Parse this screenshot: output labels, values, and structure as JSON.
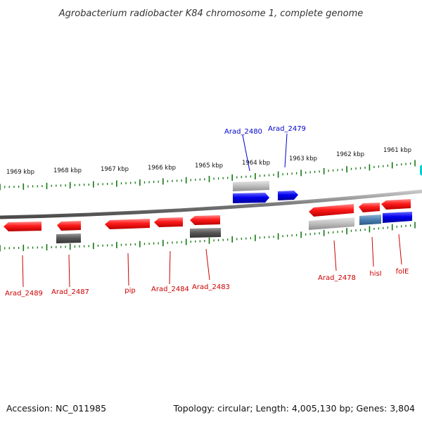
{
  "title": "Agrobacterium radiobacter K84 chromosome 1, complete genome",
  "footer": {
    "accession": "Accession: NC_011985",
    "summary": "Topology: circular; Length: 4,005,130 bp; Genes: 3,804"
  },
  "colors": {
    "forward_gene": "#ff1a1a",
    "reverse_gene": "#0000ee",
    "pseudo_gene": "#555555",
    "light_gene": "#bbbbbb",
    "blue_gray_gene": "#4a7fb0",
    "tick": "#117711",
    "label_red": "#cc0000",
    "label_blue": "#0000cc"
  },
  "kbp_labels": [
    "1969 kbp",
    "1968 kbp",
    "1967 kbp",
    "1966 kbp",
    "1965 kbp",
    "1964 kbp",
    "1963 kbp",
    "1962 kbp",
    "1961 kbp"
  ],
  "gene_labels": {
    "arad_2480": "Arad_2480",
    "arad_2479": "Arad_2479",
    "arad_2489": "Arad_2489",
    "arad_2487": "Arad_2487",
    "pip": "pip",
    "arad_2484": "Arad_2484",
    "arad_2483": "Arad_2483",
    "arad_2478": "Arad_2478",
    "hisI": "hisI",
    "folE": "folE"
  }
}
